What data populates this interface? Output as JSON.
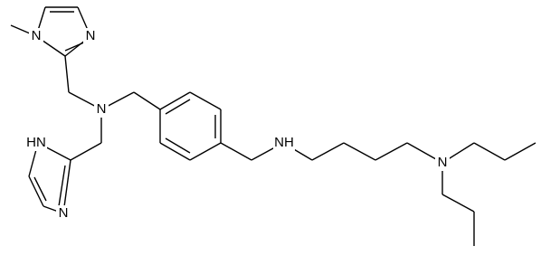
{
  "atoms": [
    {
      "label": "N"
    },
    {
      "label": "N"
    },
    {
      "label": "N"
    },
    {
      "label": "HN"
    },
    {
      "label": "N"
    },
    {
      "label": "NH"
    },
    {
      "label": "N"
    }
  ]
}
